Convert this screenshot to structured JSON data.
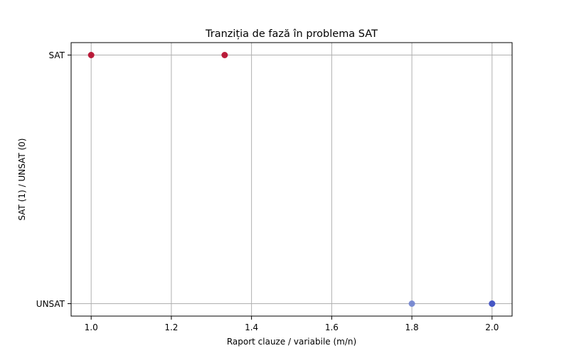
{
  "chart_data": {
    "type": "scatter",
    "title": "Tranziția de fază în problema SAT",
    "xlabel": "Raport clauze / variabile (m/n)",
    "ylabel": "SAT (1) / UNSAT (0)",
    "xlim": [
      0.95,
      2.05
    ],
    "ylim": [
      -0.05,
      1.05
    ],
    "x_ticks": [
      1.0,
      1.2,
      1.4,
      1.6,
      1.8,
      2.0
    ],
    "x_tick_labels": [
      "1.0",
      "1.2",
      "1.4",
      "1.6",
      "1.8",
      "2.0"
    ],
    "y_ticks": [
      0,
      1
    ],
    "y_tick_labels": [
      "UNSAT",
      "SAT"
    ],
    "grid": true,
    "points": [
      {
        "x": 1.0,
        "y": 1,
        "color": "#b40426"
      },
      {
        "x": 1.333,
        "y": 1,
        "color": "#b40426"
      },
      {
        "x": 1.8,
        "y": 0,
        "color": "#6f82cf"
      },
      {
        "x": 2.0,
        "y": 0,
        "color": "#3b4cc0"
      },
      {
        "x": 2.0,
        "y": 0,
        "color": "#4656c4"
      }
    ]
  }
}
